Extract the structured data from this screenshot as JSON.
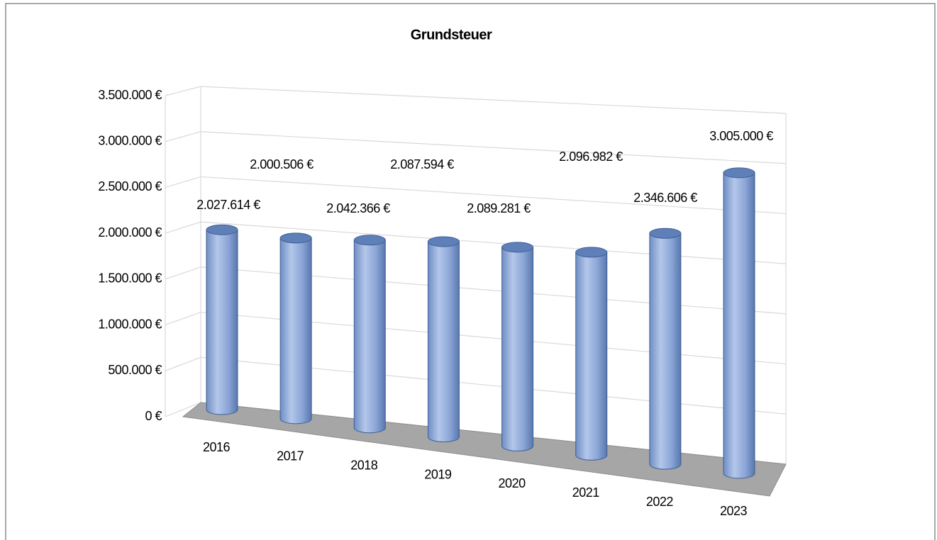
{
  "chart_data": {
    "type": "bar3d",
    "title": "Grundsteuer",
    "categories": [
      "2016",
      "2017",
      "2018",
      "2019",
      "2020",
      "2021",
      "2022",
      "2023"
    ],
    "values": [
      2027614,
      2000506,
      2042366,
      2087594,
      2089281,
      2096982,
      2346606,
      3005000
    ],
    "value_labels": [
      "2.027.614 €",
      "2.000.506 €",
      "2.042.366 €",
      "2.087.594 €",
      "2.089.281 €",
      "2.096.982 €",
      "2.346.606 €",
      "3.005.000 €"
    ],
    "color": "#8ea9db",
    "ylim": [
      0,
      3500000
    ],
    "yticks": [
      {
        "value": 0,
        "label": "0 €"
      },
      {
        "value": 500000,
        "label": "500.000 €"
      },
      {
        "value": 1000000,
        "label": "1.000.000 €"
      },
      {
        "value": 1500000,
        "label": "1.500.000 €"
      },
      {
        "value": 2000000,
        "label": "2.000.000 €"
      },
      {
        "value": 2500000,
        "label": "2.500.000 €"
      },
      {
        "value": 3000000,
        "label": "3.000.000 €"
      },
      {
        "value": 3500000,
        "label": "3.500.000 €"
      }
    ],
    "grid": true
  }
}
